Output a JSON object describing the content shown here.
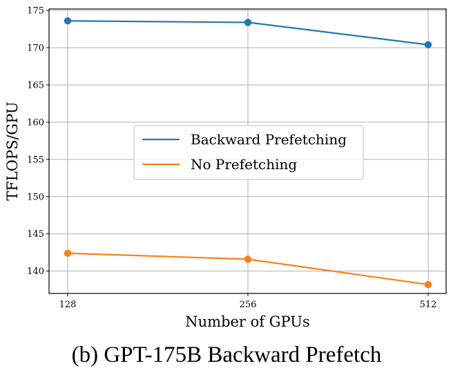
{
  "caption": "(b) GPT-175B Backward Prefetch",
  "chart_data": {
    "type": "line",
    "title": "",
    "xlabel": "Number of GPUs",
    "ylabel": "TFLOPS/GPU",
    "categories": [
      "128",
      "256",
      "512"
    ],
    "ylim": [
      137,
      175.2
    ],
    "yticks": [
      140,
      145,
      150,
      155,
      160,
      165,
      170,
      175
    ],
    "grid": true,
    "legend_position": "center",
    "series": [
      {
        "name": "Backward Prefetching",
        "color": "#1f77b4",
        "values": [
          173.6,
          173.4,
          170.4
        ]
      },
      {
        "name": "No Prefetching",
        "color": "#ff7f0e",
        "values": [
          142.4,
          141.6,
          138.2
        ]
      }
    ]
  }
}
